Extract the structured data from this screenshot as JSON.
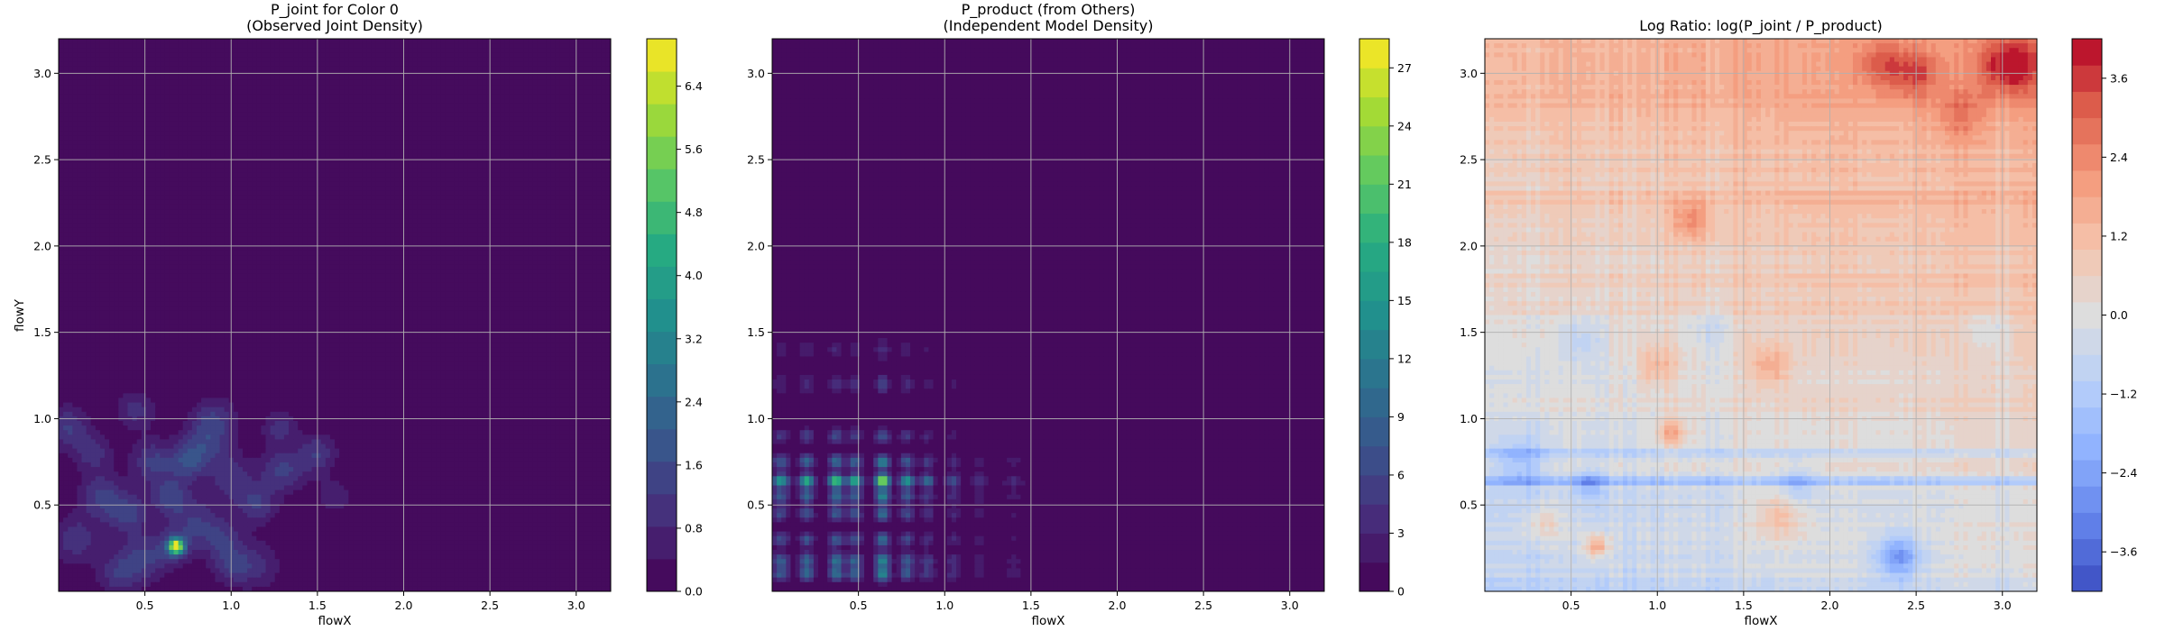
{
  "chart_data": [
    {
      "type": "contour",
      "title_line1": "P_joint for Color 0",
      "title_line2": "(Observed Joint Density)",
      "xlabel": "flowX",
      "ylabel": "flowY",
      "xlim": [
        0.0,
        3.2
      ],
      "ylim": [
        0.0,
        3.2
      ],
      "xticks": [
        "0.5",
        "1.0",
        "1.5",
        "2.0",
        "2.5",
        "3.0"
      ],
      "yticks": [
        "0.5",
        "1.0",
        "1.5",
        "2.0",
        "2.5",
        "3.0"
      ],
      "colormap": "viridis",
      "colorbar_range": [
        0.0,
        7.0
      ],
      "colorbar_levels": 17,
      "colorbar_ticks": [
        "0.0",
        "0.8",
        "1.6",
        "2.4",
        "3.2",
        "4.0",
        "4.8",
        "5.6",
        "6.4"
      ],
      "grid": true,
      "peak": {
        "x": 0.68,
        "y": 0.26,
        "value": 6.8
      }
    },
    {
      "type": "contour",
      "title_line1": "P_product (from Others)",
      "title_line2": "(Independent Model Density)",
      "xlabel": "flowX",
      "ylabel": "",
      "xlim": [
        0.0,
        3.2
      ],
      "ylim": [
        0.0,
        3.2
      ],
      "xticks": [
        "0.5",
        "1.0",
        "1.5",
        "2.0",
        "2.5",
        "3.0"
      ],
      "yticks": [
        "0.5",
        "1.0",
        "1.5",
        "2.0",
        "2.5",
        "3.0"
      ],
      "colormap": "viridis",
      "colorbar_range": [
        0,
        28.5
      ],
      "colorbar_levels": 19,
      "colorbar_ticks": [
        "0",
        "3",
        "6",
        "9",
        "12",
        "15",
        "18",
        "21",
        "24",
        "27"
      ],
      "grid": true,
      "peak": {
        "x": 0.64,
        "y": 0.64,
        "value": 28
      }
    },
    {
      "type": "contour",
      "title_line1": "Log Ratio: log(P_joint / P_product)",
      "title_line2": "",
      "xlabel": "flowX",
      "ylabel": "",
      "xlim": [
        0.0,
        3.2
      ],
      "ylim": [
        0.0,
        3.2
      ],
      "xticks": [
        "0.5",
        "1.0",
        "1.5",
        "2.0",
        "2.5",
        "3.0"
      ],
      "yticks": [
        "0.5",
        "1.0",
        "1.5",
        "2.0",
        "2.5",
        "3.0"
      ],
      "colormap": "coolwarm",
      "colorbar_range": [
        -4.2,
        4.2
      ],
      "colorbar_levels": 21,
      "colorbar_ticks": [
        "−3.6",
        "−2.4",
        "−1.2",
        "0.0",
        "1.2",
        "2.4",
        "3.6"
      ],
      "grid": true
    }
  ]
}
